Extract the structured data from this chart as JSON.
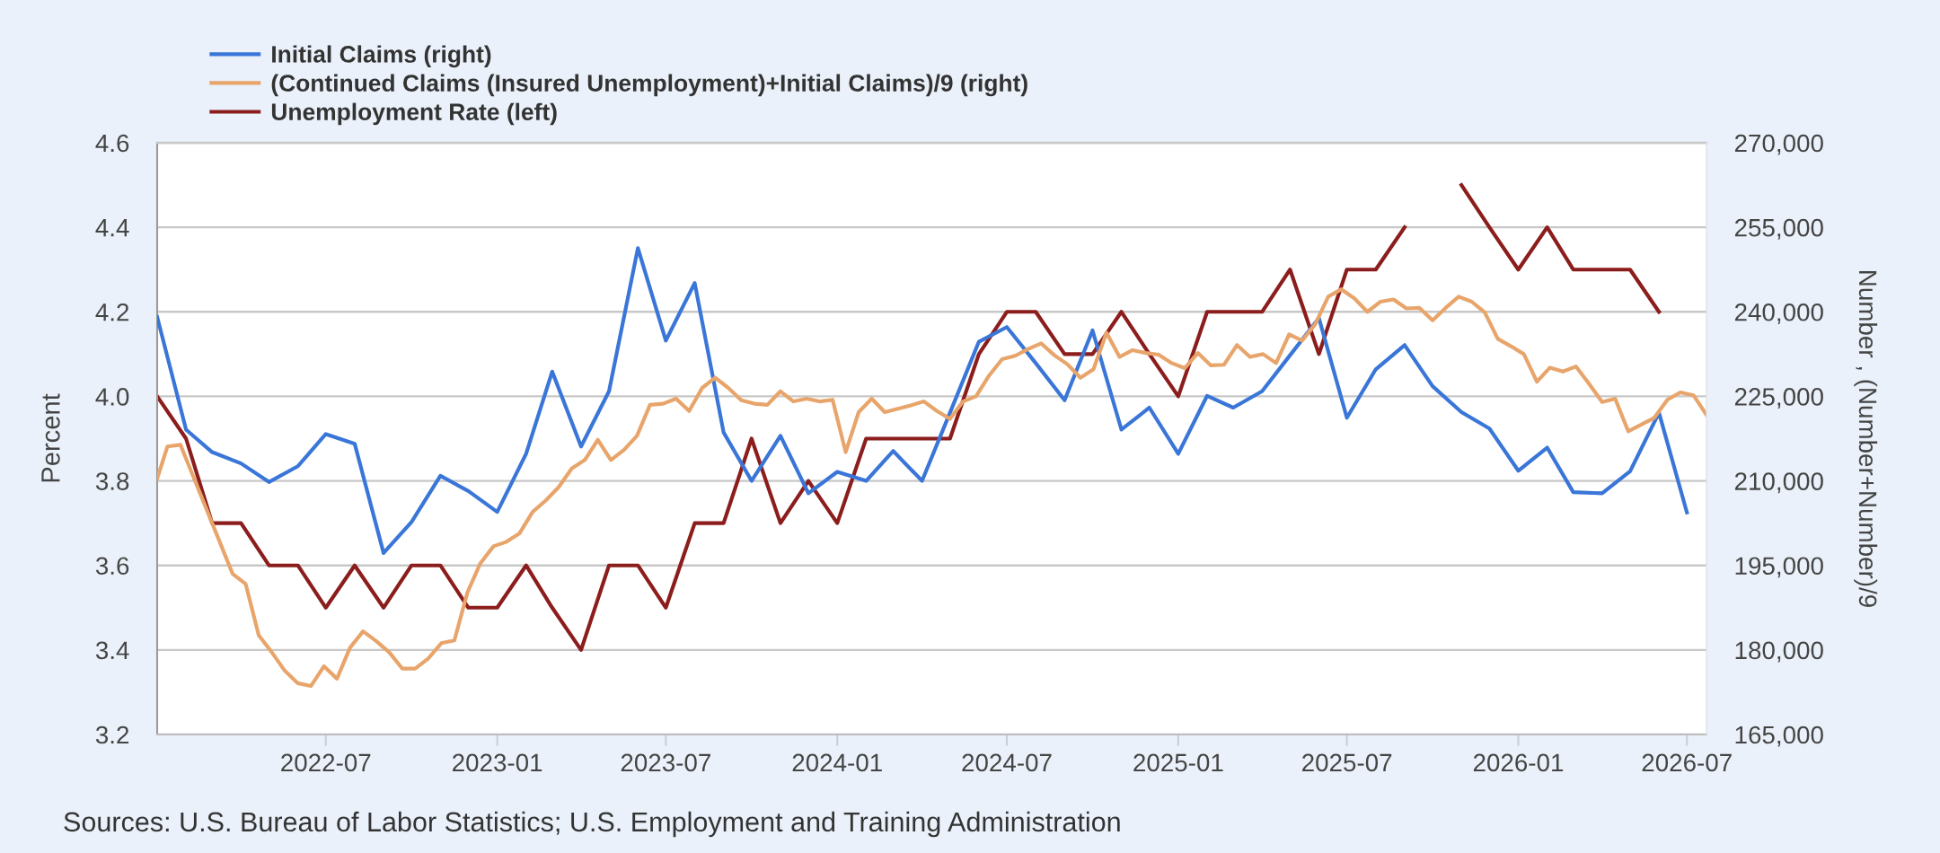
{
  "chart_data": {
    "type": "line",
    "ylabel": "Percent",
    "y2label": "Number , (Number+Number)/9",
    "annotations": [
      "Sources: U.S. Bureau of Labor Statistics; U.S. Employment and Training Administration"
    ],
    "x": [
      "2022-01",
      "2022-02",
      "2022-03",
      "2022-04",
      "2022-05",
      "2022-06",
      "2022-07",
      "2022-08",
      "2022-09",
      "2022-10",
      "2022-11",
      "2022-12",
      "2023-01",
      "2023-02",
      "2023-03",
      "2023-04",
      "2023-05",
      "2023-06",
      "2023-07",
      "2023-08",
      "2023-09",
      "2023-10",
      "2023-11",
      "2023-12",
      "2024-01",
      "2024-02",
      "2024-03",
      "2024-04",
      "2024-05",
      "2024-06",
      "2024-07",
      "2024-08",
      "2024-09",
      "2024-10",
      "2024-11",
      "2024-12",
      "2025-01",
      "2025-02",
      "2025-03",
      "2025-04",
      "2025-05",
      "2025-06",
      "2025-07",
      "2025-08",
      "2025-09",
      "2025-10",
      "2025-11",
      "2025-12",
      "2026-01",
      "2026-02",
      "2026-03",
      "2026-04",
      "2026-05",
      "2026-06",
      "2026-07"
    ],
    "series": [
      {
        "name": "Initial Claims (right)",
        "color": "#3a76d8",
        "axis": "y2",
        "values": [
          239100,
          219100,
          215100,
          213100,
          209800,
          212600,
          218300,
          216600,
          197200,
          202700,
          210900,
          208200,
          204500,
          214800,
          229400,
          216100,
          225900,
          251300,
          234900,
          245100,
          218600,
          210000,
          218000,
          207800,
          211600,
          210000,
          215300,
          210000,
          222100,
          234700,
          237300,
          230900,
          224300,
          236700,
          219100,
          223000,
          214800,
          225100,
          223000,
          225900,
          232300,
          238900,
          221200,
          229800,
          234100,
          226800,
          222200,
          219300,
          211800,
          215900,
          208000,
          207800,
          211700,
          222100,
          204400
        ]
      },
      {
        "name": "(Continued Claims (Insured Unemployment)+Initial Claims)/9 (right)",
        "color": "#e8a56b",
        "axis": "y2",
        "x": [
          "2022-01-01",
          "2022-01-12",
          "2022-01-26",
          "2022-03-23",
          "2022-04-06",
          "2022-04-20",
          "2022-05-04",
          "2022-05-18",
          "2022-06-01",
          "2022-06-15",
          "2022-06-29",
          "2022-07-13",
          "2022-07-27",
          "2022-08-10",
          "2022-08-24",
          "2022-09-07",
          "2022-09-21",
          "2022-10-05",
          "2022-10-19",
          "2022-11-02",
          "2022-11-16",
          "2022-11-30",
          "2022-12-14",
          "2022-12-28",
          "2023-01-11",
          "2023-01-25",
          "2023-02-08",
          "2023-02-22",
          "2023-03-08",
          "2023-03-22",
          "2023-04-05",
          "2023-04-19",
          "2023-05-03",
          "2023-05-17",
          "2023-05-31",
          "2023-06-14",
          "2023-06-28",
          "2023-07-12",
          "2023-07-26",
          "2023-08-09",
          "2023-08-23",
          "2023-09-06",
          "2023-09-20",
          "2023-10-04",
          "2023-10-18",
          "2023-11-01",
          "2023-11-15",
          "2023-11-29",
          "2023-12-13",
          "2023-12-27",
          "2024-01-10",
          "2024-01-24",
          "2024-02-07",
          "2024-02-21",
          "2024-03-06",
          "2024-03-20",
          "2024-04-03",
          "2024-04-17",
          "2024-05-01",
          "2024-05-15",
          "2024-05-29",
          "2024-06-12",
          "2024-06-26",
          "2024-07-10",
          "2024-07-24",
          "2024-08-07",
          "2024-08-21",
          "2024-09-04",
          "2024-09-18",
          "2024-10-02",
          "2024-10-16",
          "2024-10-30",
          "2024-11-13",
          "2024-11-27",
          "2024-12-11",
          "2024-12-25",
          "2025-01-08",
          "2025-01-22",
          "2025-02-05",
          "2025-02-19",
          "2025-03-05",
          "2025-03-19",
          "2025-04-02",
          "2025-04-16",
          "2025-04-30",
          "2025-05-14",
          "2025-05-28",
          "2025-06-11",
          "2025-06-25",
          "2025-07-09",
          "2025-07-23",
          "2025-08-06",
          "2025-08-20",
          "2025-09-03",
          "2025-09-17",
          "2025-10-01",
          "2025-10-15",
          "2025-10-29",
          "2025-11-12",
          "2025-11-26",
          "2025-12-10",
          "2025-12-24",
          "2026-01-07",
          "2026-01-21",
          "2026-02-04",
          "2026-02-18",
          "2026-03-04",
          "2026-03-18",
          "2026-04-01",
          "2026-04-15",
          "2026-04-29",
          "2026-05-13",
          "2026-05-27",
          "2026-06-10",
          "2026-06-24",
          "2026-07-08",
          "2026-07-22"
        ],
        "values": [
          210400,
          216100,
          216400,
          193500,
          191700,
          182600,
          179600,
          176300,
          174100,
          173600,
          177100,
          174900,
          180400,
          183300,
          181600,
          179600,
          176700,
          176700,
          178500,
          181200,
          181700,
          190200,
          195400,
          198400,
          199200,
          200700,
          204500,
          206500,
          208900,
          212200,
          213700,
          217300,
          213700,
          215500,
          218000,
          223500,
          223700,
          224600,
          222400,
          226500,
          228300,
          226500,
          224300,
          223700,
          223500,
          225900,
          224100,
          224600,
          224100,
          224400,
          215100,
          222200,
          224600,
          222200,
          222800,
          223400,
          224100,
          222400,
          221000,
          224100,
          225000,
          228700,
          231600,
          232200,
          233400,
          234400,
          232300,
          230700,
          228300,
          229800,
          236300,
          232000,
          233200,
          232700,
          232400,
          230900,
          230000,
          232700,
          230500,
          230600,
          234100,
          232000,
          232500,
          230900,
          236000,
          234900,
          237800,
          242700,
          244000,
          242400,
          240000,
          241800,
          242200,
          240600,
          240700,
          238500,
          240700,
          242700,
          241800,
          239900,
          235200,
          233900,
          232500,
          227600,
          230100,
          229400,
          230300,
          227200,
          224000,
          224600,
          218800,
          220000,
          221200,
          224400,
          225700,
          225200,
          221700
        ]
      },
      {
        "name": "Unemployment Rate (left)",
        "color": "#8c1d1d",
        "axis": "y",
        "values": [
          4.0,
          3.9,
          3.7,
          3.7,
          3.6,
          3.6,
          3.5,
          3.6,
          3.5,
          3.6,
          3.6,
          3.5,
          3.5,
          3.6,
          3.5,
          3.4,
          3.6,
          3.6,
          3.5,
          3.7,
          3.7,
          3.9,
          3.7,
          3.8,
          3.7,
          3.9,
          3.9,
          3.9,
          3.9,
          4.1,
          4.2,
          4.2,
          4.1,
          4.1,
          4.2,
          4.1,
          4.0,
          4.2,
          4.2,
          4.2,
          4.3,
          4.1,
          4.3,
          4.3,
          4.4,
          null,
          4.5,
          4.4,
          4.3,
          4.4,
          4.3,
          4.3,
          4.3,
          4.2,
          null
        ]
      }
    ],
    "xlim": [
      "2022-01-01",
      "2026-07-22"
    ],
    "xticks": [
      "2022-07",
      "2023-01",
      "2023-07",
      "2024-01",
      "2024-07",
      "2025-01",
      "2025-07",
      "2026-01",
      "2026-07"
    ],
    "ylim": [
      3.2,
      4.6
    ],
    "yticks": [
      3.2,
      3.4,
      3.6,
      3.8,
      {
        "value": 4,
        "label": "4.0"
      },
      4.2,
      4.4,
      4.6
    ],
    "y2lim": [
      165000,
      270000
    ],
    "y2ticks": [
      {
        "value": 165000,
        "label": "165,000"
      },
      {
        "value": 180000,
        "label": "180,000"
      },
      {
        "value": 195000,
        "label": "195,000"
      },
      {
        "value": 210000,
        "label": "210,000"
      },
      {
        "value": 225000,
        "label": "225,000"
      },
      {
        "value": 240000,
        "label": "240,000"
      },
      {
        "value": 255000,
        "label": "255,000"
      },
      {
        "value": 270000,
        "label": "270,000"
      }
    ],
    "grid": "y",
    "legend": "top left",
    "line_style": "solid",
    "marker": "none"
  }
}
